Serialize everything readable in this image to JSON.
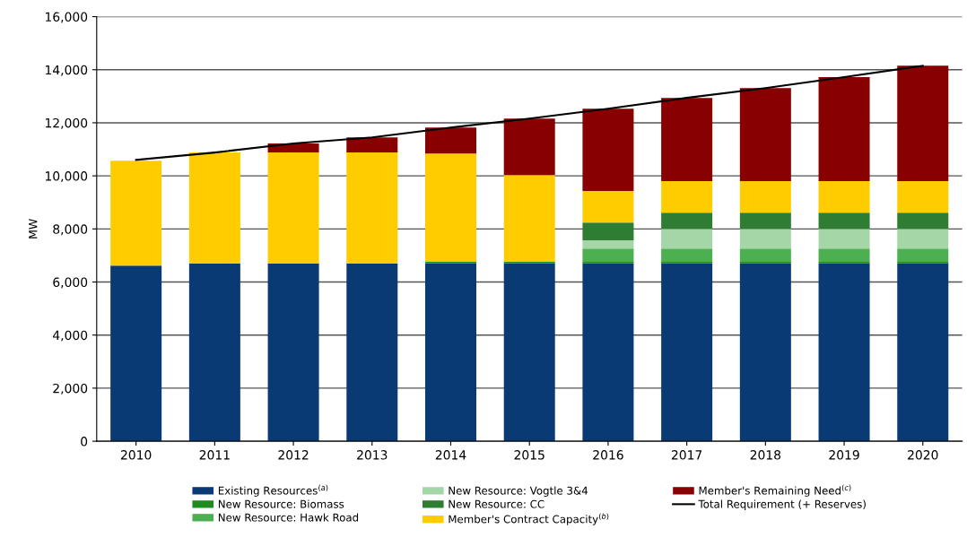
{
  "chart_data": {
    "type": "bar",
    "stacked": true,
    "ylabel": "MW",
    "categories": [
      "2010",
      "2011",
      "2012",
      "2013",
      "2014",
      "2015",
      "2016",
      "2017",
      "2018",
      "2019",
      "2020"
    ],
    "series": [
      {
        "name": "Existing Resources$^{(a)}$",
        "color": "#0a3a73",
        "values": [
          6620,
          6700,
          6700,
          6700,
          6700,
          6700,
          6700,
          6700,
          6700,
          6700,
          6700
        ]
      },
      {
        "name": "New Resource: Biomass",
        "color": "#1e8c1e",
        "values": [
          0,
          0,
          0,
          0,
          60,
          60,
          60,
          60,
          60,
          60,
          60
        ]
      },
      {
        "name": "New Resource: Hawk Road",
        "color": "#4caf50",
        "values": [
          0,
          0,
          0,
          0,
          0,
          0,
          500,
          500,
          500,
          500,
          500
        ]
      },
      {
        "name": "New Resource: Vogtle 3&4",
        "color": "#a5d6a7",
        "values": [
          0,
          0,
          0,
          0,
          0,
          0,
          310,
          740,
          740,
          740,
          740
        ]
      },
      {
        "name": "New Resource: CC",
        "color": "#2e7d32",
        "values": [
          0,
          0,
          0,
          0,
          0,
          0,
          670,
          610,
          610,
          610,
          610
        ]
      },
      {
        "name": "Member's Contract Capacity$^{(b)}$",
        "color": "#ffcc00",
        "values": [
          3950,
          4180,
          4180,
          4180,
          4080,
          3270,
          1190,
          1190,
          1190,
          1190,
          1190
        ]
      },
      {
        "name": "Member's Remaining Need$^{(c)}$",
        "color": "#880000",
        "values": [
          0,
          0,
          340,
          570,
          980,
          2130,
          3100,
          3140,
          3510,
          3920,
          4350
        ]
      },
      {
        "name": "Total Requirement (+ Reserves)",
        "type": "line",
        "color": "#000000",
        "values": [
          10600,
          10880,
          11220,
          11450,
          11820,
          12160,
          12530,
          12940,
          13310,
          13720,
          14150
        ]
      }
    ],
    "ylim": [
      0,
      16000
    ],
    "yticks": [
      {
        "value": 0,
        "label": "0"
      },
      {
        "value": 2000,
        "label": "2,000"
      },
      {
        "value": 4000,
        "label": "4,000"
      },
      {
        "value": 6000,
        "label": "6,000"
      },
      {
        "value": 8000,
        "label": "8,000"
      },
      {
        "value": 10000,
        "label": "10,000"
      },
      {
        "value": 12000,
        "label": "12,000"
      },
      {
        "value": 14000,
        "label": "14,000"
      },
      {
        "value": 16000,
        "label": "16,000"
      }
    ],
    "grid": "y",
    "legend": "bottom"
  }
}
